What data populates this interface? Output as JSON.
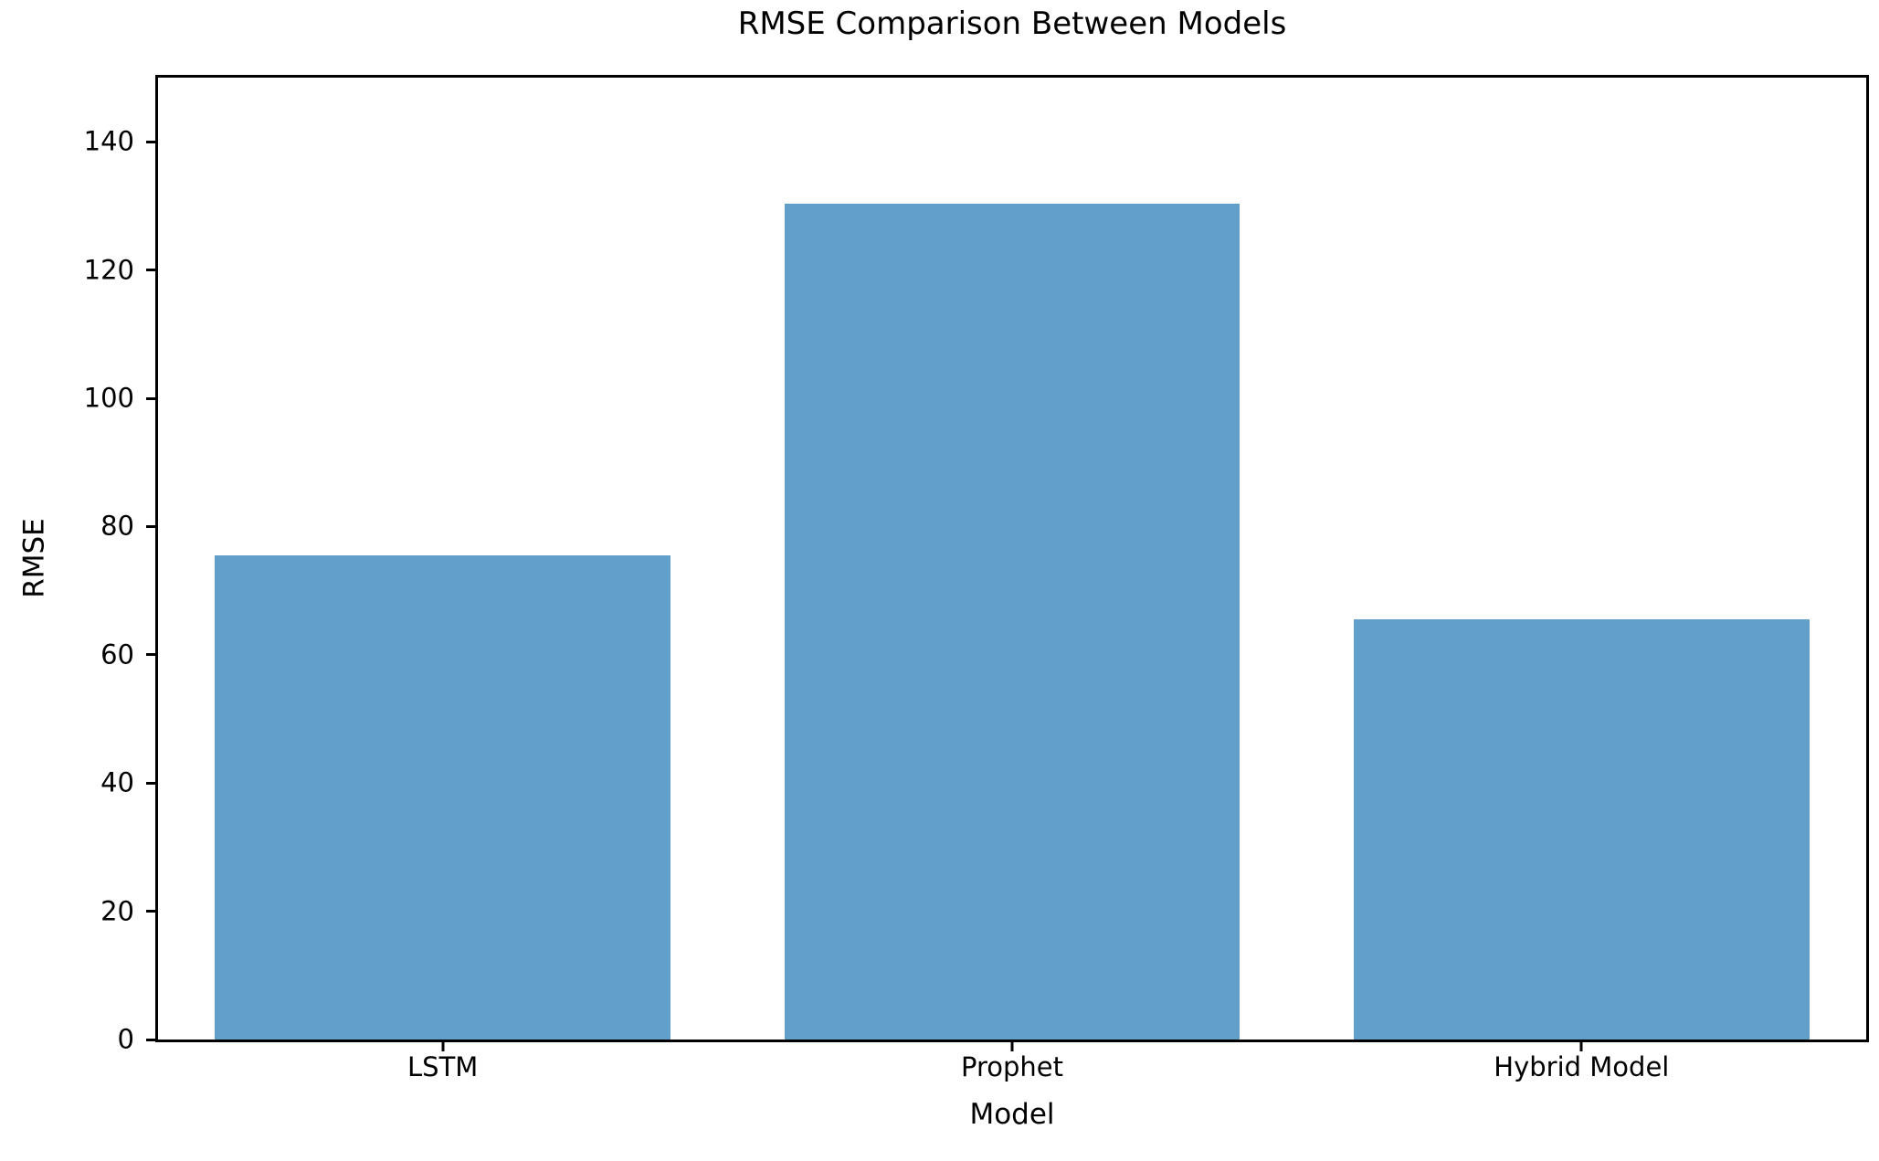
{
  "chart_data": {
    "type": "bar",
    "title": "RMSE Comparison Between Models",
    "xlabel": "Model",
    "ylabel": "RMSE",
    "categories": [
      "LSTM",
      "Prophet",
      "Hybrid Model"
    ],
    "values": [
      75.5,
      130.4,
      65.5
    ],
    "yticks": [
      0,
      20,
      40,
      60,
      80,
      100,
      120,
      140
    ],
    "ylim": [
      0,
      150
    ],
    "bar_color": "#62a0cb",
    "bar_width_fraction": 0.8,
    "grid": false,
    "legend": "none"
  }
}
